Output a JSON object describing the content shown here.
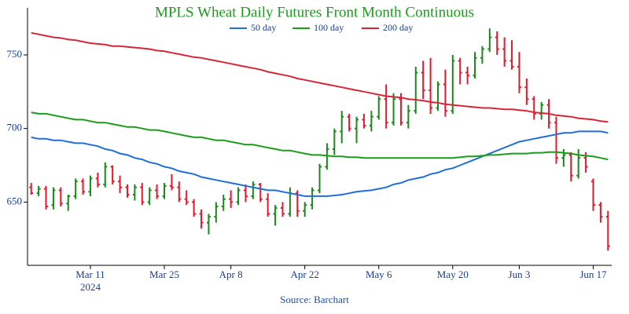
{
  "chart_data": {
    "type": "ohlc",
    "title": "MPLS Wheat Daily Futures Front Month Continuous",
    "source": "Source: Barchart",
    "x": [
      "2024-02-28",
      "2024-02-29",
      "2024-03-01",
      "2024-03-04",
      "2024-03-05",
      "2024-03-06",
      "2024-03-07",
      "2024-03-08",
      "2024-03-11",
      "2024-03-12",
      "2024-03-13",
      "2024-03-14",
      "2024-03-15",
      "2024-03-18",
      "2024-03-19",
      "2024-03-20",
      "2024-03-21",
      "2024-03-22",
      "2024-03-25",
      "2024-03-26",
      "2024-03-27",
      "2024-03-28",
      "2024-04-01",
      "2024-04-02",
      "2024-04-03",
      "2024-04-04",
      "2024-04-05",
      "2024-04-08",
      "2024-04-09",
      "2024-04-10",
      "2024-04-11",
      "2024-04-12",
      "2024-04-15",
      "2024-04-16",
      "2024-04-17",
      "2024-04-18",
      "2024-04-19",
      "2024-04-22",
      "2024-04-23",
      "2024-04-24",
      "2024-04-25",
      "2024-04-26",
      "2024-04-29",
      "2024-04-30",
      "2024-05-01",
      "2024-05-02",
      "2024-05-03",
      "2024-05-06",
      "2024-05-07",
      "2024-05-08",
      "2024-05-09",
      "2024-05-10",
      "2024-05-13",
      "2024-05-14",
      "2024-05-15",
      "2024-05-16",
      "2024-05-17",
      "2024-05-20",
      "2024-05-21",
      "2024-05-22",
      "2024-05-23",
      "2024-05-24",
      "2024-05-28",
      "2024-05-29",
      "2024-05-30",
      "2024-05-31",
      "2024-06-03",
      "2024-06-04",
      "2024-06-05",
      "2024-06-06",
      "2024-06-07",
      "2024-06-10",
      "2024-06-11",
      "2024-06-12",
      "2024-06-13",
      "2024-06-14",
      "2024-06-17",
      "2024-06-18",
      "2024-06-20"
    ],
    "open": [
      660,
      656,
      659,
      648,
      658,
      649,
      654,
      664,
      657,
      666,
      662,
      674,
      664,
      660,
      655,
      660,
      650,
      658,
      654,
      661,
      660,
      652,
      650,
      642,
      636,
      640,
      647,
      652,
      650,
      658,
      654,
      662,
      652,
      642,
      646,
      642,
      656,
      644,
      648,
      658,
      674,
      686,
      698,
      708,
      700,
      706,
      702,
      708,
      720,
      704,
      720,
      704,
      712,
      738,
      726,
      714,
      730,
      712,
      746,
      738,
      736,
      748,
      754,
      762,
      754,
      746,
      742,
      728,
      720,
      710,
      716,
      704,
      680,
      682,
      668,
      680,
      664,
      648,
      640
    ],
    "high": [
      663,
      661,
      661,
      660,
      660,
      655,
      666,
      666,
      668,
      670,
      677,
      675,
      668,
      662,
      662,
      663,
      660,
      662,
      663,
      669,
      664,
      658,
      652,
      645,
      642,
      650,
      655,
      658,
      660,
      662,
      664,
      663,
      656,
      648,
      650,
      660,
      658,
      650,
      660,
      676,
      690,
      700,
      712,
      710,
      708,
      710,
      712,
      722,
      730,
      724,
      724,
      716,
      742,
      746,
      748,
      732,
      740,
      750,
      748,
      742,
      752,
      756,
      768,
      766,
      762,
      760,
      752,
      734,
      722,
      718,
      720,
      708,
      686,
      684,
      686,
      684,
      666,
      650,
      644
    ],
    "low": [
      655,
      654,
      645,
      645,
      647,
      644,
      652,
      655,
      654,
      660,
      660,
      662,
      656,
      653,
      651,
      648,
      648,
      652,
      652,
      658,
      650,
      648,
      640,
      632,
      628,
      636,
      644,
      646,
      648,
      650,
      652,
      650,
      640,
      634,
      640,
      640,
      640,
      640,
      645,
      656,
      672,
      682,
      690,
      698,
      690,
      700,
      698,
      706,
      700,
      702,
      702,
      700,
      710,
      720,
      710,
      712,
      708,
      710,
      730,
      730,
      734,
      744,
      752,
      750,
      742,
      740,
      724,
      716,
      706,
      706,
      700,
      676,
      674,
      664,
      666,
      670,
      644,
      636,
      617
    ],
    "close": [
      656,
      659,
      647,
      658,
      649,
      654,
      664,
      657,
      666,
      662,
      674,
      664,
      660,
      655,
      660,
      650,
      658,
      654,
      661,
      660,
      652,
      650,
      642,
      636,
      640,
      647,
      652,
      650,
      658,
      654,
      662,
      652,
      642,
      646,
      642,
      656,
      644,
      648,
      658,
      674,
      686,
      698,
      708,
      700,
      706,
      702,
      708,
      720,
      704,
      720,
      704,
      712,
      738,
      726,
      714,
      730,
      712,
      746,
      738,
      736,
      748,
      754,
      762,
      754,
      746,
      742,
      728,
      720,
      710,
      716,
      704,
      680,
      682,
      668,
      680,
      674,
      648,
      640,
      620
    ],
    "increasing_color": "#1a8a1a",
    "decreasing_color": "#e8182a",
    "series": [
      {
        "name": "50 day",
        "color": "#1f6fd8",
        "values": [
          694,
          693,
          693,
          692,
          692,
          691,
          690,
          690,
          689,
          688,
          686,
          685,
          683,
          682,
          680,
          679,
          677,
          676,
          674,
          673,
          671,
          670,
          669,
          667,
          666,
          665,
          664,
          663,
          662,
          661,
          660,
          659,
          658,
          658,
          657,
          656,
          655,
          654,
          654,
          654,
          654,
          654.5,
          655,
          656,
          657,
          657.5,
          658,
          659,
          660,
          662,
          663,
          665,
          666,
          667,
          669,
          670,
          672,
          673,
          675,
          677,
          679,
          681,
          683,
          685,
          687,
          689,
          691,
          692,
          693,
          694,
          695,
          696,
          697,
          697,
          698,
          698,
          698,
          698,
          697
        ]
      },
      {
        "name": "100 day",
        "color": "#1a9e1a",
        "values": [
          711,
          710,
          710,
          709,
          708,
          707,
          706,
          706,
          705,
          704,
          704,
          703,
          702,
          701,
          701,
          700,
          699,
          699,
          698,
          697,
          696,
          695,
          694,
          694,
          693,
          692,
          692,
          691,
          690,
          689,
          689,
          688,
          687,
          686,
          685,
          685,
          684,
          683,
          682,
          682,
          681.5,
          681,
          681,
          680.5,
          680.5,
          680,
          680,
          680,
          680,
          680,
          680,
          680,
          680,
          680,
          680,
          680,
          680,
          680,
          680.5,
          681,
          681,
          681.5,
          682,
          682,
          682.5,
          683,
          683,
          683,
          683.5,
          683.5,
          684,
          684,
          683.5,
          683,
          682,
          681.5,
          681,
          680,
          679
        ]
      },
      {
        "name": "200 day",
        "color": "#d62739",
        "values": [
          765,
          764,
          763,
          762,
          761.5,
          760.5,
          760,
          759,
          758,
          757.5,
          757,
          756,
          756,
          755.5,
          755,
          754.5,
          754,
          753,
          752.5,
          751.5,
          750.5,
          749.5,
          748.5,
          748,
          747,
          746,
          745,
          744,
          743,
          742,
          741,
          740,
          738.5,
          737.5,
          736.5,
          735.5,
          734,
          733,
          732,
          731,
          730,
          729,
          728,
          727,
          726,
          725,
          724,
          723,
          722,
          721.5,
          721,
          720,
          719.5,
          719,
          718,
          717.5,
          716.5,
          716,
          715.5,
          715,
          714.5,
          714,
          714,
          713.5,
          713,
          713,
          712.5,
          712,
          711,
          710.5,
          710,
          709,
          708.5,
          708,
          707,
          706.5,
          706,
          705,
          704.5
        ]
      }
    ],
    "ylim": [
      607,
      782
    ],
    "yticks": [
      650,
      700,
      750
    ],
    "xticks": [
      {
        "value": "2024-03-11",
        "label": "Mar 11"
      },
      {
        "value": "2024-03-25",
        "label": "Mar 25"
      },
      {
        "value": "2024-04-08",
        "label": "Apr 8"
      },
      {
        "value": "2024-04-22",
        "label": "Apr 22"
      },
      {
        "value": "2024-05-06",
        "label": "May 6"
      },
      {
        "value": "2024-05-20",
        "label": "May 20"
      },
      {
        "value": "2024-06-03",
        "label": "Jun 3"
      },
      {
        "value": "2024-06-17",
        "label": "Jun 17"
      }
    ],
    "xtick_year": "2024",
    "grid": false
  }
}
